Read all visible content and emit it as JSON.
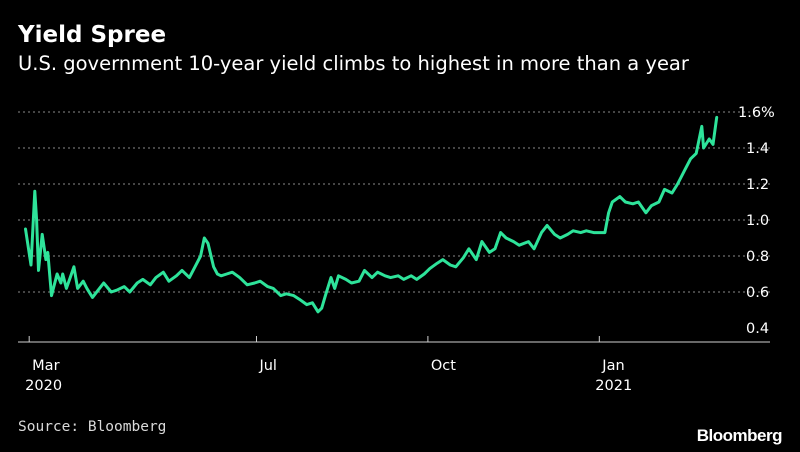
{
  "title": "Yield Spree",
  "subtitle": "U.S. government 10-year yield climbs to highest in more than a year",
  "source": "Source: Bloomberg",
  "logo": "Bloomberg",
  "colors": {
    "background": "#000000",
    "line": "#2ee39a",
    "grid": "#8a8a8a",
    "text": "#ffffff"
  },
  "chart_data": {
    "type": "line",
    "title": "Yield Spree",
    "subtitle": "U.S. government 10-year yield climbs to highest in more than a year",
    "xlabel": "",
    "ylabel": "",
    "ylim": [
      0.35,
      1.6
    ],
    "yticks": [
      0.4,
      0.6,
      0.8,
      1.0,
      1.2,
      1.4,
      1.6
    ],
    "ytick_labels": [
      "0.4",
      "0.6",
      "0.8",
      "1.0",
      "1.2",
      "1.4",
      "1.6%"
    ],
    "xlim": [
      "2020-02-24",
      "2021-03-10"
    ],
    "xticks": [
      {
        "date": "2020-03-01",
        "label": "Mar",
        "sublabel": "2020"
      },
      {
        "date": "2020-07-01",
        "label": "Jul",
        "sublabel": ""
      },
      {
        "date": "2020-10-01",
        "label": "Oct",
        "sublabel": ""
      },
      {
        "date": "2021-01-01",
        "label": "Jan",
        "sublabel": "2021"
      }
    ],
    "grid": "horizontal-dotted",
    "y_axis_side": "right",
    "series": [
      {
        "x": [
          "2020-02-28",
          "2020-03-02",
          "2020-03-04",
          "2020-03-05",
          "2020-03-06",
          "2020-03-08",
          "2020-03-10",
          "2020-03-11",
          "2020-03-13",
          "2020-03-16",
          "2020-03-18",
          "2020-03-19",
          "2020-03-21",
          "2020-03-23",
          "2020-03-25",
          "2020-03-27",
          "2020-03-30",
          "2020-04-01",
          "2020-04-04",
          "2020-04-07",
          "2020-04-10",
          "2020-04-14",
          "2020-04-17",
          "2020-04-21",
          "2020-04-24",
          "2020-04-28",
          "2020-05-01",
          "2020-05-05",
          "2020-05-08",
          "2020-05-12",
          "2020-05-15",
          "2020-05-19",
          "2020-05-22",
          "2020-05-26",
          "2020-05-29",
          "2020-06-01",
          "2020-06-03",
          "2020-06-05",
          "2020-06-08",
          "2020-06-10",
          "2020-06-12",
          "2020-06-15",
          "2020-06-18",
          "2020-06-22",
          "2020-06-26",
          "2020-06-30",
          "2020-07-03",
          "2020-07-07",
          "2020-07-10",
          "2020-07-14",
          "2020-07-17",
          "2020-07-21",
          "2020-07-24",
          "2020-07-28",
          "2020-07-31",
          "2020-08-03",
          "2020-08-05",
          "2020-08-07",
          "2020-08-10",
          "2020-08-12",
          "2020-08-14",
          "2020-08-18",
          "2020-08-21",
          "2020-08-25",
          "2020-08-28",
          "2020-09-01",
          "2020-09-04",
          "2020-09-08",
          "2020-09-11",
          "2020-09-15",
          "2020-09-18",
          "2020-09-22",
          "2020-09-25",
          "2020-09-29",
          "2020-10-02",
          "2020-10-06",
          "2020-10-09",
          "2020-10-13",
          "2020-10-16",
          "2020-10-20",
          "2020-10-23",
          "2020-10-27",
          "2020-10-30",
          "2020-11-03",
          "2020-11-06",
          "2020-11-09",
          "2020-11-12",
          "2020-11-16",
          "2020-11-19",
          "2020-11-24",
          "2020-11-27",
          "2020-12-01",
          "2020-12-04",
          "2020-12-08",
          "2020-12-11",
          "2020-12-15",
          "2020-12-18",
          "2020-12-22",
          "2020-12-25",
          "2020-12-29",
          "2021-01-01",
          "2021-01-04",
          "2021-01-06",
          "2021-01-08",
          "2021-01-12",
          "2021-01-15",
          "2021-01-19",
          "2021-01-22",
          "2021-01-26",
          "2021-01-29",
          "2021-02-02",
          "2021-02-05",
          "2021-02-09",
          "2021-02-12",
          "2021-02-16",
          "2021-02-19",
          "2021-02-22",
          "2021-02-25",
          "2021-02-26",
          "2021-03-01",
          "2021-03-03",
          "2021-03-05"
        ],
        "values": [
          0.95,
          0.75,
          1.16,
          1.0,
          0.72,
          0.92,
          0.78,
          0.82,
          0.58,
          0.7,
          0.65,
          0.7,
          0.62,
          0.68,
          0.74,
          0.62,
          0.66,
          0.62,
          0.57,
          0.61,
          0.65,
          0.6,
          0.61,
          0.63,
          0.6,
          0.65,
          0.67,
          0.64,
          0.68,
          0.71,
          0.66,
          0.69,
          0.72,
          0.68,
          0.74,
          0.8,
          0.9,
          0.87,
          0.74,
          0.7,
          0.69,
          0.7,
          0.71,
          0.68,
          0.64,
          0.65,
          0.66,
          0.63,
          0.62,
          0.58,
          0.59,
          0.58,
          0.56,
          0.53,
          0.54,
          0.49,
          0.51,
          0.58,
          0.68,
          0.62,
          0.69,
          0.67,
          0.65,
          0.66,
          0.72,
          0.68,
          0.71,
          0.69,
          0.68,
          0.69,
          0.67,
          0.69,
          0.67,
          0.7,
          0.73,
          0.76,
          0.78,
          0.75,
          0.74,
          0.79,
          0.84,
          0.78,
          0.88,
          0.82,
          0.84,
          0.93,
          0.9,
          0.88,
          0.86,
          0.88,
          0.84,
          0.93,
          0.97,
          0.92,
          0.9,
          0.92,
          0.94,
          0.93,
          0.94,
          0.93,
          0.93,
          0.93,
          1.04,
          1.1,
          1.13,
          1.1,
          1.09,
          1.1,
          1.04,
          1.08,
          1.1,
          1.17,
          1.15,
          1.2,
          1.28,
          1.34,
          1.37,
          1.52,
          1.4,
          1.45,
          1.42,
          1.57
        ]
      }
    ]
  }
}
